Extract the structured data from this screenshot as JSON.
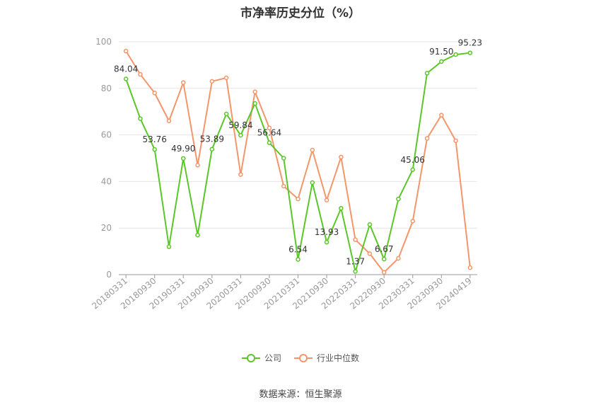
{
  "chart_data": {
    "type": "line",
    "title": "市净率历史分位（%）",
    "source": "数据来源：恒生聚源",
    "ylim": [
      0,
      100
    ],
    "yticks": [
      0,
      20,
      40,
      60,
      80,
      100
    ],
    "grid": true,
    "legend_position": "bottom",
    "x": [
      "20180331",
      "20180630",
      "20180930",
      "20181231",
      "20190331",
      "20190630",
      "20190930",
      "20191231",
      "20200331",
      "20200630",
      "20200930",
      "20201231",
      "20210331",
      "20210630",
      "20210930",
      "20211231",
      "20220331",
      "20220630",
      "20220930",
      "20221231",
      "20230331",
      "20230630",
      "20230930",
      "20231231",
      "20240419"
    ],
    "xticks": [
      "20180331",
      "20180930",
      "20190331",
      "20190930",
      "20200331",
      "20200930",
      "20210331",
      "20210930",
      "20220331",
      "20220930",
      "20230331",
      "20230930",
      "20240419"
    ],
    "series": [
      {
        "name": "公司",
        "color": "#5bc628",
        "values": [
          84.04,
          67.0,
          53.76,
          12.0,
          49.9,
          17.0,
          53.89,
          69.0,
          59.84,
          73.5,
          56.64,
          50.0,
          6.54,
          39.5,
          13.93,
          28.5,
          1.37,
          21.5,
          6.67,
          32.5,
          45.06,
          86.5,
          91.5,
          94.5,
          95.23
        ],
        "labels": {
          "0": "84.04",
          "2": "53.76",
          "4": "49.90",
          "6": "53.89",
          "8": "59.84",
          "10": "56.64",
          "12": "6.54",
          "14": "13.93",
          "16": "1.37",
          "18": "6.67",
          "20": "45.06",
          "22": "91.50",
          "24": "95.23"
        }
      },
      {
        "name": "行业中位数",
        "color": "#f4956a",
        "values": [
          96.0,
          86.0,
          78.0,
          66.0,
          82.5,
          47.0,
          83.0,
          84.5,
          43.0,
          78.5,
          63.0,
          38.0,
          32.5,
          53.5,
          32.0,
          50.5,
          15.0,
          9.0,
          1.0,
          7.0,
          23.0,
          58.5,
          68.5,
          57.5,
          3.0
        ]
      }
    ]
  }
}
